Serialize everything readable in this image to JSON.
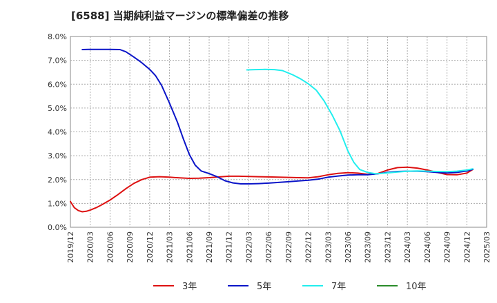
{
  "chart_data": {
    "type": "line",
    "title": "[6588]  当期純利益マージンの標準偏差の推移",
    "xlabel": "",
    "ylabel": "",
    "ylim": [
      0,
      8
    ],
    "grid": true,
    "legend_position": "bottom",
    "x_ticks": [
      "2019/12",
      "2020/03",
      "2020/06",
      "2020/09",
      "2020/12",
      "2021/03",
      "2021/06",
      "2021/09",
      "2021/12",
      "2022/03",
      "2022/06",
      "2022/09",
      "2022/12",
      "2023/03",
      "2023/06",
      "2023/09",
      "2023/12",
      "2024/03",
      "2024/06",
      "2024/09",
      "2024/12",
      "2025/03"
    ],
    "y_ticks": [
      "0.0%",
      "1.0%",
      "2.0%",
      "3.0%",
      "4.0%",
      "5.0%",
      "6.0%",
      "7.0%",
      "8.0%"
    ],
    "series": [
      {
        "name": "3年",
        "color": "#dd1111",
        "points": [
          [
            0,
            1.08
          ],
          [
            0.2,
            0.82
          ],
          [
            0.4,
            0.7
          ],
          [
            0.6,
            0.65
          ],
          [
            0.8,
            0.67
          ],
          [
            1,
            0.72
          ],
          [
            1.3,
            0.82
          ],
          [
            1.6,
            0.95
          ],
          [
            2,
            1.14
          ],
          [
            2.4,
            1.37
          ],
          [
            2.8,
            1.62
          ],
          [
            3.2,
            1.84
          ],
          [
            3.6,
            2.0
          ],
          [
            4,
            2.1
          ],
          [
            4.5,
            2.12
          ],
          [
            5,
            2.1
          ],
          [
            5.5,
            2.07
          ],
          [
            6,
            2.05
          ],
          [
            6.5,
            2.06
          ],
          [
            7,
            2.08
          ],
          [
            7.5,
            2.11
          ],
          [
            8,
            2.14
          ],
          [
            8.5,
            2.14
          ],
          [
            9,
            2.13
          ],
          [
            9.5,
            2.12
          ],
          [
            10,
            2.11
          ],
          [
            10.5,
            2.1
          ],
          [
            11,
            2.09
          ],
          [
            11.5,
            2.08
          ],
          [
            12,
            2.07
          ],
          [
            12.5,
            2.12
          ],
          [
            13,
            2.2
          ],
          [
            13.5,
            2.26
          ],
          [
            14,
            2.29
          ],
          [
            14.5,
            2.27
          ],
          [
            15,
            2.22
          ],
          [
            15.5,
            2.25
          ],
          [
            16,
            2.4
          ],
          [
            16.5,
            2.5
          ],
          [
            17,
            2.52
          ],
          [
            17.5,
            2.48
          ],
          [
            18,
            2.4
          ],
          [
            18.5,
            2.3
          ],
          [
            19,
            2.21
          ],
          [
            19.5,
            2.2
          ],
          [
            20,
            2.27
          ],
          [
            20.3,
            2.42
          ]
        ]
      },
      {
        "name": "5年",
        "color": "#0a14c8",
        "points": [
          [
            0.6,
            7.45
          ],
          [
            1,
            7.46
          ],
          [
            1.5,
            7.46
          ],
          [
            2,
            7.46
          ],
          [
            2.5,
            7.45
          ],
          [
            2.8,
            7.36
          ],
          [
            3.2,
            7.14
          ],
          [
            3.6,
            6.9
          ],
          [
            4,
            6.62
          ],
          [
            4.3,
            6.35
          ],
          [
            4.6,
            5.95
          ],
          [
            5,
            5.2
          ],
          [
            5.4,
            4.4
          ],
          [
            5.7,
            3.7
          ],
          [
            6,
            3.05
          ],
          [
            6.3,
            2.6
          ],
          [
            6.6,
            2.36
          ],
          [
            7,
            2.25
          ],
          [
            7.4,
            2.12
          ],
          [
            7.8,
            1.95
          ],
          [
            8.2,
            1.86
          ],
          [
            8.6,
            1.82
          ],
          [
            9,
            1.82
          ],
          [
            9.5,
            1.83
          ],
          [
            10,
            1.85
          ],
          [
            10.5,
            1.88
          ],
          [
            11,
            1.91
          ],
          [
            11.5,
            1.94
          ],
          [
            12,
            1.97
          ],
          [
            12.5,
            2.02
          ],
          [
            13,
            2.1
          ],
          [
            13.5,
            2.15
          ],
          [
            14,
            2.19
          ],
          [
            14.5,
            2.2
          ],
          [
            15,
            2.2
          ],
          [
            15.5,
            2.24
          ],
          [
            16,
            2.3
          ],
          [
            16.5,
            2.34
          ],
          [
            17,
            2.35
          ],
          [
            17.5,
            2.35
          ],
          [
            18,
            2.33
          ],
          [
            18.5,
            2.3
          ],
          [
            19,
            2.28
          ],
          [
            19.5,
            2.3
          ],
          [
            20,
            2.36
          ],
          [
            20.3,
            2.43
          ]
        ]
      },
      {
        "name": "7年",
        "color": "#22eeee",
        "points": [
          [
            8.9,
            6.6
          ],
          [
            9.3,
            6.61
          ],
          [
            9.8,
            6.62
          ],
          [
            10.3,
            6.61
          ],
          [
            10.7,
            6.57
          ],
          [
            11.2,
            6.4
          ],
          [
            11.6,
            6.23
          ],
          [
            12,
            6.02
          ],
          [
            12.4,
            5.75
          ],
          [
            12.8,
            5.3
          ],
          [
            13.2,
            4.72
          ],
          [
            13.6,
            4.05
          ],
          [
            14,
            3.2
          ],
          [
            14.3,
            2.72
          ],
          [
            14.6,
            2.42
          ],
          [
            15,
            2.3
          ],
          [
            15.4,
            2.24
          ],
          [
            16,
            2.28
          ],
          [
            16.5,
            2.32
          ],
          [
            17,
            2.35
          ],
          [
            17.5,
            2.36
          ],
          [
            18,
            2.35
          ],
          [
            18.5,
            2.34
          ],
          [
            19,
            2.33
          ],
          [
            19.5,
            2.35
          ],
          [
            20,
            2.4
          ],
          [
            20.3,
            2.45
          ]
        ]
      },
      {
        "name": "10年",
        "color": "#2a8c2a",
        "points": []
      }
    ]
  }
}
